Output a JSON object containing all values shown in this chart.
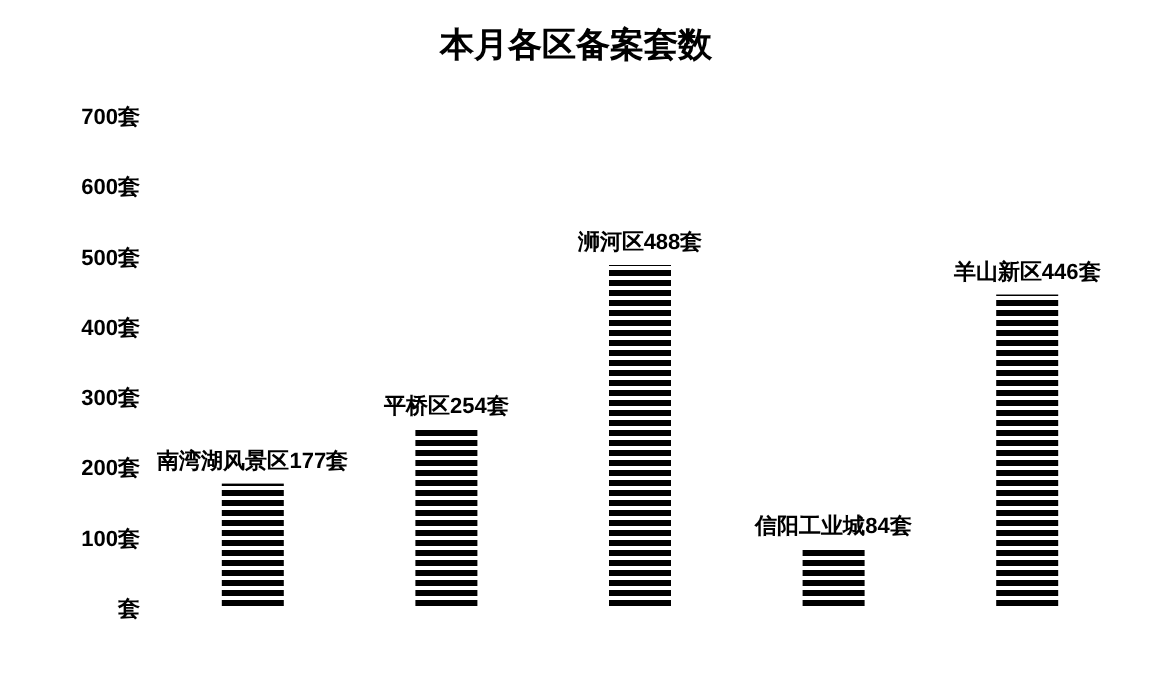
{
  "chart_data": {
    "type": "bar",
    "title": "本月各区备案套数",
    "categories": [
      null,
      null,
      null,
      null,
      null
    ],
    "values": [
      177,
      254,
      488,
      84,
      446
    ],
    "value_labels": [
      "南湾湖风景区177套",
      "平桥区254套",
      "浉河区488套",
      "信阳工业城84套",
      "羊山新区446套"
    ],
    "color": "#000000",
    "ylim": [
      0,
      700
    ],
    "yticks": [
      {
        "value": 0,
        "label": "套"
      },
      {
        "value": 100,
        "label": "100套"
      },
      {
        "value": 200,
        "label": "200套"
      },
      {
        "value": 300,
        "label": "300套"
      },
      {
        "value": 400,
        "label": "400套"
      },
      {
        "value": 500,
        "label": "500套"
      },
      {
        "value": 600,
        "label": "600套"
      },
      {
        "value": 700,
        "label": "700套"
      }
    ]
  }
}
